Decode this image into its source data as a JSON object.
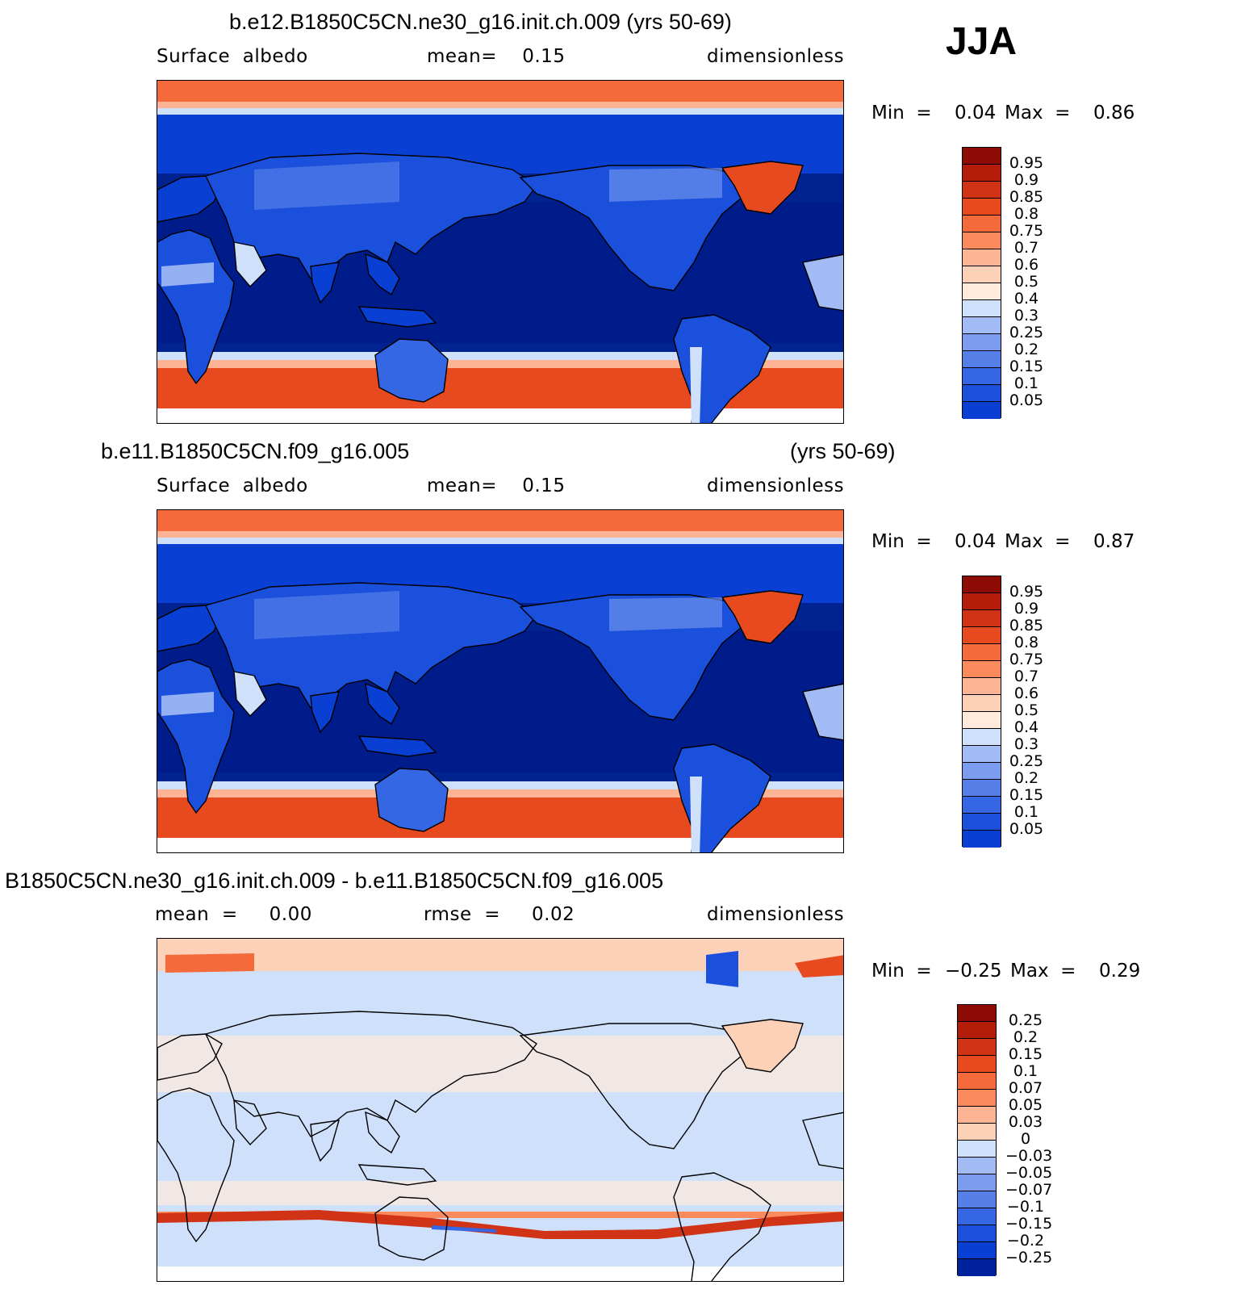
{
  "season": "JJA",
  "colors": {
    "blue_ramp": [
      "#00137f",
      "#00229e",
      "#0332c2",
      "#0a3fd4",
      "#1a50dc",
      "#3566e4",
      "#567fe8",
      "#7c9cef",
      "#a3bbf5",
      "#cfe0fb"
    ],
    "ocean_deep": "#001b8a",
    "ocean_mid": "#0a3fd4",
    "red_ramp": [
      "#ffeadb",
      "#fdd0b8",
      "#fcb494",
      "#fb8a5c",
      "#f46a3a",
      "#e84a1f",
      "#d03315",
      "#b51d0b",
      "#8e0c06"
    ],
    "land_outline": "#000000"
  },
  "panels": [
    {
      "title": "b.e12.B1850C5CN.ne30_g16.init.ch.009 (yrs 50-69)",
      "title_right": "",
      "subtitle_left": "Surface  albedo",
      "subtitle_mid": "mean=    0.15",
      "subtitle_right": "dimensionless",
      "min_label": "Min  =",
      "min_value": "0.04",
      "max_label": "Max  =",
      "max_value": "0.86",
      "field": "absolute",
      "colorbar_labels": [
        "0.95",
        "0.9",
        "0.85",
        "0.8",
        "0.75",
        "0.7",
        "0.6",
        "0.5",
        "0.4",
        "0.3",
        "0.25",
        "0.2",
        "0.15",
        "0.1",
        "0.05"
      ]
    },
    {
      "title": "b.e11.B1850C5CN.f09_g16.005",
      "title_right": "(yrs 50-69)",
      "subtitle_left": "Surface  albedo",
      "subtitle_mid": "mean=    0.15",
      "subtitle_right": "dimensionless",
      "min_label": "Min  =",
      "min_value": "0.04",
      "max_label": "Max  =",
      "max_value": "0.87",
      "field": "absolute",
      "colorbar_labels": [
        "0.95",
        "0.9",
        "0.85",
        "0.8",
        "0.75",
        "0.7",
        "0.6",
        "0.5",
        "0.4",
        "0.3",
        "0.25",
        "0.2",
        "0.15",
        "0.1",
        "0.05"
      ]
    },
    {
      "title": "B1850C5CN.ne30_g16.init.ch.009 - b.e11.B1850C5CN.f09_g16.005",
      "title_right": "",
      "subtitle_left": "mean  =     0.00",
      "subtitle_mid": "rmse  =     0.02",
      "subtitle_right": "dimensionless",
      "min_label": "Min  =",
      "min_value": "−0.25",
      "max_label": "Max  =",
      "max_value": "0.29",
      "field": "difference",
      "colorbar_labels": [
        "0.25",
        "0.2",
        "0.15",
        "0.1",
        "0.07",
        "0.05",
        "0.03",
        "0",
        "−0.03",
        "−0.05",
        "−0.07",
        "−0.1",
        "−0.15",
        "−0.2",
        "−0.25"
      ]
    }
  ]
}
